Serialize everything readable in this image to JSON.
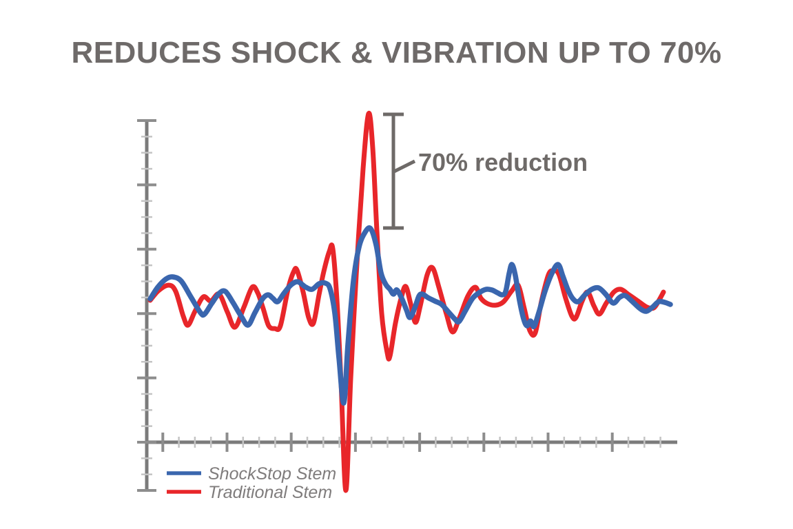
{
  "title": {
    "text": "REDUCES SHOCK & VIBRATION UP TO 70%",
    "color": "#6e6a69"
  },
  "annotation": {
    "label": "70% reduction",
    "color": "#6e6a68"
  },
  "legend": {
    "text_color": "#7f7c7c",
    "items": [
      {
        "label": "ShockStop Stem",
        "color": "#3a66ae"
      },
      {
        "label": "Traditional Stem",
        "color": "#e8262a"
      }
    ]
  },
  "chart_data": {
    "type": "line",
    "title": "REDUCES SHOCK & VIBRATION UP TO 70%",
    "xlabel": "",
    "ylabel": "",
    "grid": false,
    "axis_tick_labels": "none (unlabeled oscilloscope-style axes)",
    "legend_position": "bottom-left",
    "units_note": "digitized points in screen-pixel space of the 1151x768 image; y increases downward; waveform baseline ~y=435; x-axis line y=642",
    "baseline_y": 435,
    "annotations": [
      {
        "label": "70% reduction",
        "meaning": "bracket spanning Traditional Stem peak (y~165) down to ShockStop Stem peak (y~332)"
      }
    ],
    "axes": {
      "axis_color": "#7b7b7b",
      "major_tick_color": "#8d8d8d",
      "minor_tick_color": "#c4c4c4",
      "x": {
        "y": 642,
        "from": 213,
        "to": 983,
        "step": 23.3,
        "k0": 1,
        "k1": 32,
        "major_rem": 1,
        "end_cap_major": false
      },
      "y": {
        "x": 213,
        "from": 175,
        "to": 712,
        "step": 23.35,
        "k0": 0,
        "k1": 23,
        "major_rem": 0,
        "end_cap_major": true
      }
    },
    "series": [
      {
        "name": "ShockStop Stem",
        "color": "#3a66ae",
        "stroke_width": 7.5,
        "points": [
          [
            218,
            434
          ],
          [
            229,
            417
          ],
          [
            241,
            405
          ],
          [
            251,
            402
          ],
          [
            263,
            408
          ],
          [
            277,
            431
          ],
          [
            291,
            454
          ],
          [
            297,
            456
          ],
          [
            307,
            441
          ],
          [
            318,
            426
          ],
          [
            327,
            423
          ],
          [
            338,
            439
          ],
          [
            350,
            459
          ],
          [
            360,
            472
          ],
          [
            370,
            454
          ],
          [
            381,
            434
          ],
          [
            389,
            428
          ],
          [
            396,
            433
          ],
          [
            403,
            438
          ],
          [
            412,
            426
          ],
          [
            422,
            414
          ],
          [
            432,
            409
          ],
          [
            444,
            417
          ],
          [
            453,
            420
          ],
          [
            463,
            412
          ],
          [
            472,
            411
          ],
          [
            479,
            419
          ],
          [
            486,
            455
          ],
          [
            492,
            520
          ],
          [
            499,
            585
          ],
          [
            505,
            500
          ],
          [
            513,
            408
          ],
          [
            521,
            359
          ],
          [
            530,
            337
          ],
          [
            538,
            332
          ],
          [
            546,
            356
          ],
          [
            553,
            396
          ],
          [
            560,
            413
          ],
          [
            566,
            420
          ],
          [
            571,
            427
          ],
          [
            576,
            421
          ],
          [
            583,
            433
          ],
          [
            590,
            450
          ],
          [
            595,
            461
          ],
          [
            602,
            447
          ],
          [
            608,
            430
          ],
          [
            613,
            427
          ],
          [
            621,
            432
          ],
          [
            631,
            437
          ],
          [
            641,
            442
          ],
          [
            651,
            453
          ],
          [
            660,
            463
          ],
          [
            666,
            467
          ],
          [
            675,
            452
          ],
          [
            686,
            433
          ],
          [
            697,
            424
          ],
          [
            706,
            420
          ],
          [
            714,
            421
          ],
          [
            722,
            425
          ],
          [
            729,
            428
          ],
          [
            734,
            423
          ],
          [
            739,
            397
          ],
          [
            743,
            384
          ],
          [
            748,
            400
          ],
          [
            754,
            436
          ],
          [
            760,
            463
          ],
          [
            765,
            473
          ],
          [
            770,
            466
          ],
          [
            775,
            474
          ],
          [
            782,
            454
          ],
          [
            791,
            423
          ],
          [
            801,
            397
          ],
          [
            810,
            384
          ],
          [
            817,
            401
          ],
          [
            824,
            420
          ],
          [
            831,
            433
          ],
          [
            839,
            438
          ],
          [
            849,
            428
          ],
          [
            859,
            420
          ],
          [
            869,
            418
          ],
          [
            879,
            427
          ],
          [
            890,
            440
          ],
          [
            899,
            432
          ],
          [
            907,
            429
          ],
          [
            917,
            437
          ],
          [
            929,
            448
          ],
          [
            938,
            452
          ],
          [
            947,
            446
          ],
          [
            956,
            438
          ],
          [
            965,
            439
          ],
          [
            973,
            442
          ]
        ]
      },
      {
        "name": "Traditional Stem",
        "color": "#e8262a",
        "stroke_width": 7,
        "points": [
          [
            218,
            436
          ],
          [
            230,
            422
          ],
          [
            245,
            414
          ],
          [
            255,
            423
          ],
          [
            266,
            459
          ],
          [
            273,
            472
          ],
          [
            283,
            452
          ],
          [
            295,
            431
          ],
          [
            306,
            437
          ],
          [
            318,
            427
          ],
          [
            330,
            453
          ],
          [
            341,
            475
          ],
          [
            354,
            446
          ],
          [
            366,
            417
          ],
          [
            374,
            425
          ],
          [
            382,
            448
          ],
          [
            390,
            473
          ],
          [
            399,
            477
          ],
          [
            407,
            473
          ],
          [
            418,
            420
          ],
          [
            426,
            395
          ],
          [
            431,
            392
          ],
          [
            440,
            424
          ],
          [
            448,
            461
          ],
          [
            455,
            469
          ],
          [
            463,
            428
          ],
          [
            470,
            394
          ],
          [
            478,
            365
          ],
          [
            483,
            361
          ],
          [
            489,
            435
          ],
          [
            495,
            555
          ],
          [
            502,
            712
          ],
          [
            509,
            550
          ],
          [
            517,
            400
          ],
          [
            527,
            245
          ],
          [
            535,
            165
          ],
          [
            541,
            215
          ],
          [
            547,
            335
          ],
          [
            554,
            455
          ],
          [
            562,
            512
          ],
          [
            566,
            517
          ],
          [
            574,
            469
          ],
          [
            583,
            430
          ],
          [
            589,
            416
          ],
          [
            596,
            441
          ],
          [
            603,
            468
          ],
          [
            610,
            444
          ],
          [
            620,
            399
          ],
          [
            628,
            389
          ],
          [
            637,
            417
          ],
          [
            648,
            456
          ],
          [
            657,
            482
          ],
          [
            667,
            461
          ],
          [
            679,
            430
          ],
          [
            690,
            417
          ],
          [
            698,
            433
          ],
          [
            708,
            441
          ],
          [
            720,
            443
          ],
          [
            731,
            438
          ],
          [
            743,
            422
          ],
          [
            752,
            414
          ],
          [
            761,
            448
          ],
          [
            769,
            480
          ],
          [
            777,
            483
          ],
          [
            786,
            437
          ],
          [
            796,
            399
          ],
          [
            803,
            393
          ],
          [
            811,
            398
          ],
          [
            821,
            433
          ],
          [
            830,
            459
          ],
          [
            836,
            461
          ],
          [
            845,
            437
          ],
          [
            853,
            424
          ],
          [
            862,
            444
          ],
          [
            870,
            456
          ],
          [
            880,
            440
          ],
          [
            891,
            424
          ],
          [
            901,
            420
          ],
          [
            913,
            428
          ],
          [
            926,
            437
          ],
          [
            939,
            446
          ],
          [
            949,
            447
          ],
          [
            957,
            435
          ],
          [
            963,
            424
          ]
        ]
      }
    ],
    "bracket": {
      "x": 571,
      "top_y": 166,
      "bottom_y": 331,
      "cap_half_width": 15,
      "pointer": [
        [
          572,
          249
        ],
        [
          602,
          234
        ]
      ],
      "stroke_width": 5
    }
  }
}
